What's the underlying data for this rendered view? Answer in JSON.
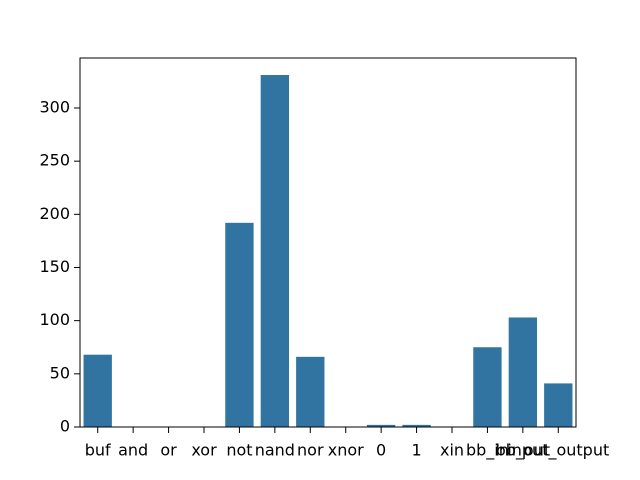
{
  "chart_data": {
    "type": "bar",
    "categories": [
      "buf",
      "and",
      "or",
      "xor",
      "not",
      "nand",
      "nor",
      "xnor",
      "0",
      "1",
      "xin",
      "bb_in",
      "bb_out",
      "input_output"
    ],
    "values": [
      68,
      0,
      0,
      0,
      192,
      331,
      66,
      0,
      2,
      2,
      0,
      75,
      103,
      41
    ],
    "color": "#3274a1",
    "ylim": [
      0,
      347
    ],
    "yticks": [
      0,
      50,
      100,
      150,
      200,
      250,
      300
    ],
    "grid": false
  }
}
